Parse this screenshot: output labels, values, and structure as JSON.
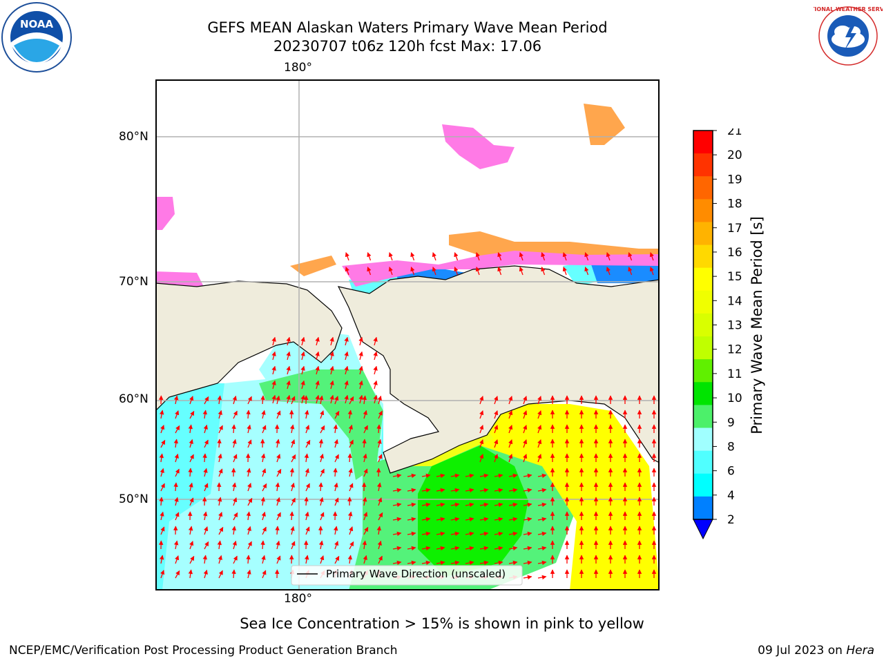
{
  "header": {
    "title_line1": "GEFS MEAN Alaskan Waters Primary Wave Mean Period",
    "title_line2": "20230707 t06z 120h fcst   Max: 17.06"
  },
  "map": {
    "top_lon_label": "180°",
    "bottom_lon_label": "180°",
    "lat_labels": [
      "80°N",
      "70°N",
      "60°N",
      "50°N"
    ],
    "legend_label": "Primary Wave Direction (unscaled)",
    "arrow_color": "#ff0000",
    "land_color": "#efecdc",
    "ocean_colors": {
      "cyan_light": "#a6ffff",
      "cyan": "#66ffff",
      "green_light": "#54f27a",
      "green": "#0ef000",
      "yellow": "#ffff00",
      "yellow_green": "#f0ff16",
      "blue": "#1a8cff",
      "ice_pink": "#ff7ae6",
      "ice_orange": "#ffa64d"
    }
  },
  "colorbar": {
    "label": "Primary Wave Mean Period [s]",
    "ticks": [
      "21",
      "20",
      "19",
      "18",
      "17",
      "16",
      "15",
      "14",
      "13",
      "12",
      "11",
      "10",
      "9",
      "8",
      "6",
      "4",
      "2"
    ],
    "colors": [
      "#ff0000",
      "#ff3300",
      "#ff6600",
      "#ff8c00",
      "#ffb300",
      "#ffd900",
      "#ffff00",
      "#f0ff00",
      "#d9ff00",
      "#c0ff00",
      "#60f000",
      "#00e400",
      "#4cf06a",
      "#a0ffff",
      "#50ffff",
      "#00ffff",
      "#0080ff"
    ],
    "under_color": "#0000ff"
  },
  "footer": {
    "ice_note": "Sea Ice Concentration > 15% is shown in pink to yellow",
    "branch": "NCEP/EMC/Verification Post Processing Product Generation Branch",
    "date": "09 Jul 2023 on ",
    "host": "Hera"
  },
  "logos": {
    "noaa_text": "NOAA",
    "nws_text": "NATIONAL WEATHER SERVICE"
  }
}
